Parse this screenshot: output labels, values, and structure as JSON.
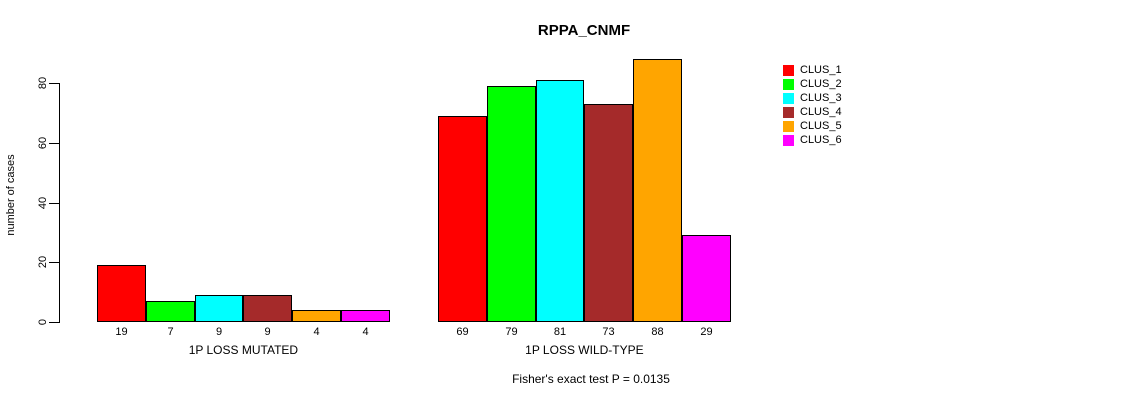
{
  "chart_data": {
    "type": "bar",
    "title": "RPPA_CNMF",
    "ylabel": "number of cases",
    "xlabel": "",
    "ylim": [
      0,
      80
    ],
    "yticks": [
      0,
      20,
      40,
      60,
      80
    ],
    "grid": false,
    "legend_position": "right",
    "bar_value_labels_shown": true,
    "categories": [
      "1P LOSS MUTATED",
      "1P LOSS WILD-TYPE"
    ],
    "series": [
      {
        "name": "CLUS_1",
        "color": "#FF0000",
        "values": [
          19,
          69
        ]
      },
      {
        "name": "CLUS_2",
        "color": "#00FF00",
        "values": [
          7,
          79
        ]
      },
      {
        "name": "CLUS_3",
        "color": "#00FFFF",
        "values": [
          9,
          81
        ]
      },
      {
        "name": "CLUS_4",
        "color": "#A52A2A",
        "values": [
          9,
          73
        ]
      },
      {
        "name": "CLUS_5",
        "color": "#FFA500",
        "values": [
          4,
          88
        ]
      },
      {
        "name": "CLUS_6",
        "color": "#FF00FF",
        "values": [
          4,
          29
        ]
      }
    ],
    "annotation": "Fisher's exact test P = 0.0135",
    "axis_color": "#000000",
    "bar_border_color": "#000000"
  }
}
